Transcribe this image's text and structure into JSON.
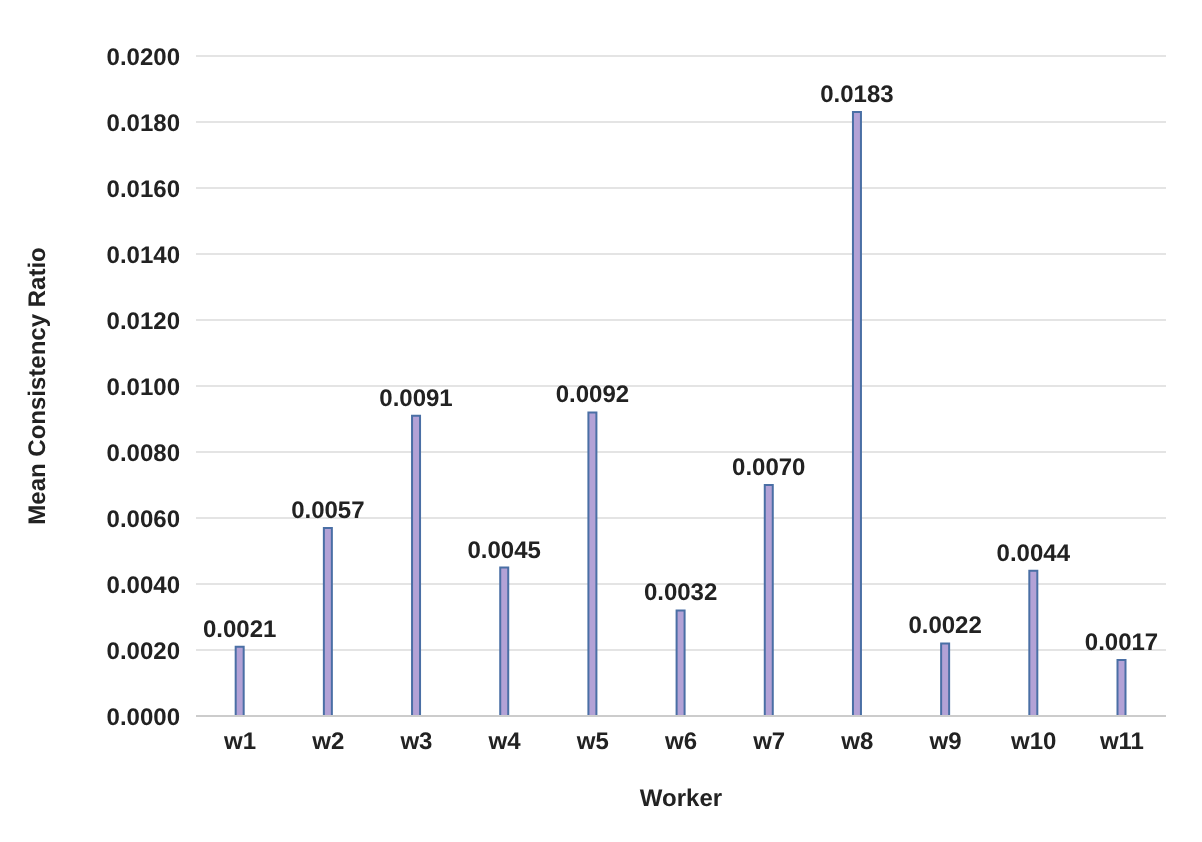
{
  "chart_data": {
    "type": "bar",
    "xlabel": "Worker",
    "ylabel": "Mean Consistency Ratio",
    "categories": [
      "w1",
      "w2",
      "w3",
      "w4",
      "w5",
      "w6",
      "w7",
      "w8",
      "w9",
      "w10",
      "w11"
    ],
    "values": [
      0.0021,
      0.0057,
      0.0091,
      0.0045,
      0.0092,
      0.0032,
      0.007,
      0.0183,
      0.0022,
      0.0044,
      0.0017
    ],
    "value_labels": [
      "0.0021",
      "0.0057",
      "0.0091",
      "0.0045",
      "0.0092",
      "0.0032",
      "0.0070",
      "0.0183",
      "0.0022",
      "0.0044",
      "0.0017"
    ],
    "color": "#b3a2d6",
    "ylim": [
      0,
      0.02
    ],
    "yticks": [
      {
        "value": 0,
        "label": "0.0000"
      },
      {
        "value": 0.002,
        "label": "0.0020"
      },
      {
        "value": 0.004,
        "label": "0.0040"
      },
      {
        "value": 0.006,
        "label": "0.0060"
      },
      {
        "value": 0.008,
        "label": "0.0080"
      },
      {
        "value": 0.01,
        "label": "0.0100"
      },
      {
        "value": 0.012,
        "label": "0.0120"
      },
      {
        "value": 0.014,
        "label": "0.0140"
      },
      {
        "value": 0.016,
        "label": "0.0160"
      },
      {
        "value": 0.018,
        "label": "0.0180"
      },
      {
        "value": 0.02,
        "label": "0.0200"
      }
    ],
    "grid": "y",
    "legend": false
  }
}
